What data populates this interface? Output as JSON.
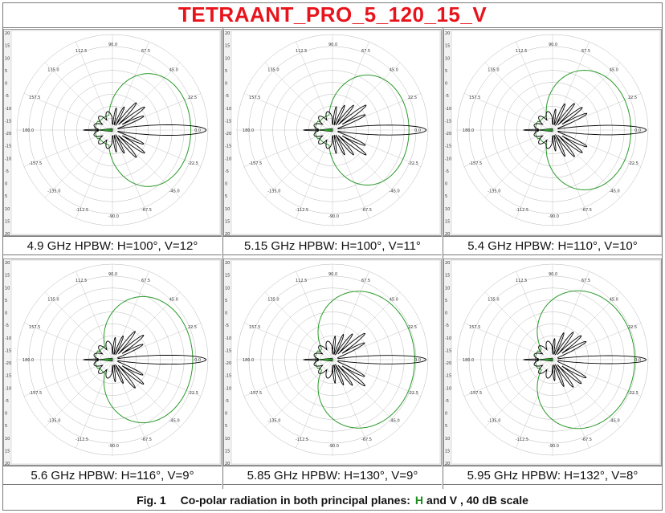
{
  "title": "TETRAANT_PRO_5_120_15_V",
  "footer": {
    "fig": "Fig. 1",
    "text_before": "Co-polar radiation in both principal planes:",
    "h": "H",
    "text_after": "and V , 40 dB scale"
  },
  "colors": {
    "title": "#e8141c",
    "h_plane": "#2a9a2a",
    "v_plane": "#000000",
    "grid": "#b8b8b8"
  },
  "chart_data": [
    {
      "type": "polar",
      "caption": "4.9 GHz HPBW: H=100°, V=12°",
      "h_hpbw": 100,
      "v_hpbw": 12,
      "h_level": 0.82,
      "v_variant": 0
    },
    {
      "type": "polar",
      "caption": "5.15 GHz HPBW: H=100°, V=11°",
      "h_hpbw": 100,
      "v_hpbw": 11,
      "h_level": 0.8,
      "v_variant": 1
    },
    {
      "type": "polar",
      "caption": "5.4 GHz HPBW: H=110°, V=10°",
      "h_hpbw": 110,
      "v_hpbw": 10,
      "h_level": 0.82,
      "v_variant": 2
    },
    {
      "type": "polar",
      "caption": "5.6 GHz HPBW: H=116°, V=9°",
      "h_hpbw": 116,
      "v_hpbw": 9,
      "h_level": 0.84,
      "v_variant": 3
    },
    {
      "type": "polar",
      "caption": "5.85 GHz HPBW: H=130°, V=9°",
      "h_hpbw": 130,
      "v_hpbw": 9,
      "h_level": 0.86,
      "v_variant": 4
    },
    {
      "type": "polar",
      "caption": "5.95 GHz HPBW: H=132°, V=8°",
      "h_hpbw": 132,
      "v_hpbw": 8,
      "h_level": 0.86,
      "v_variant": 5
    }
  ],
  "axis": {
    "angle_labels": [
      "0.0",
      "22.5",
      "45.0",
      "67.5",
      "90.0",
      "112.5",
      "135.0",
      "157.5",
      "180.0",
      "-157.5",
      "-135.0",
      "-112.5",
      "-90.0",
      "-67.5",
      "-45.0",
      "-22.5"
    ],
    "side_ticks": [
      "20",
      "15",
      "10",
      "5",
      "0",
      "-5",
      "-10",
      "-15",
      "-20",
      "-15",
      "-10",
      "-5",
      "0",
      "5",
      "10",
      "15",
      "20"
    ]
  }
}
